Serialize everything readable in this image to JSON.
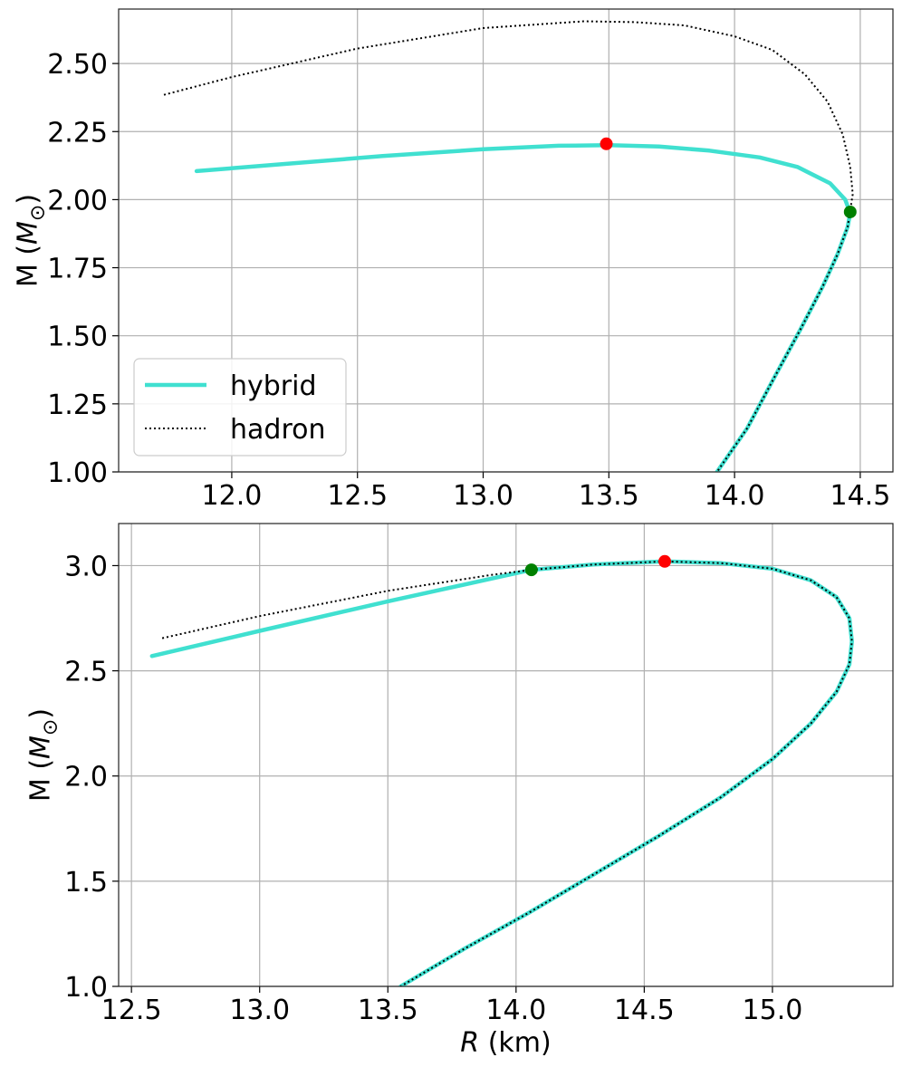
{
  "chart_data": [
    {
      "type": "line",
      "xlabel": "",
      "ylabel": "M (M⊙)",
      "xlim": [
        11.55,
        14.63
      ],
      "ylim": [
        1.0,
        2.7
      ],
      "xticks": [
        12.0,
        12.5,
        13.0,
        13.5,
        14.0,
        14.5
      ],
      "xtick_labels": [
        "12.0",
        "12.5",
        "13.0",
        "13.5",
        "14.0",
        "14.5"
      ],
      "yticks": [
        1.0,
        1.25,
        1.5,
        1.75,
        2.0,
        2.25,
        2.5
      ],
      "ytick_labels": [
        "1.00",
        "1.25",
        "1.50",
        "1.75",
        "2.00",
        "2.25",
        "2.50"
      ],
      "grid": true,
      "legend": "lower-left",
      "series": [
        {
          "name": "hybrid",
          "style": "solid",
          "color": "#40E0D0",
          "x": [
            11.86,
            12.2,
            12.6,
            13.0,
            13.3,
            13.5,
            13.7,
            13.9,
            14.1,
            14.25,
            14.38,
            14.44,
            14.46,
            14.45,
            14.41,
            14.35,
            14.26,
            14.16,
            14.05,
            13.93
          ],
          "y": [
            2.105,
            2.13,
            2.16,
            2.185,
            2.198,
            2.2,
            2.195,
            2.18,
            2.155,
            2.12,
            2.06,
            2.0,
            1.95,
            1.9,
            1.8,
            1.68,
            1.52,
            1.35,
            1.16,
            1.0
          ]
        },
        {
          "name": "hadron",
          "style": "dotted",
          "color": "#000000",
          "x": [
            11.73,
            12.0,
            12.5,
            13.0,
            13.4,
            13.6,
            13.8,
            14.0,
            14.15,
            14.28,
            14.37,
            14.43,
            14.46,
            14.47,
            14.46,
            14.45,
            14.41,
            14.35,
            14.26,
            14.16,
            14.05,
            13.93
          ],
          "y": [
            2.385,
            2.45,
            2.555,
            2.63,
            2.655,
            2.652,
            2.64,
            2.6,
            2.55,
            2.46,
            2.36,
            2.24,
            2.12,
            2.02,
            1.96,
            1.9,
            1.8,
            1.68,
            1.52,
            1.35,
            1.16,
            1.0
          ]
        }
      ],
      "markers": [
        {
          "x": 13.49,
          "y": 2.205,
          "color": "#FF0000"
        },
        {
          "x": 14.46,
          "y": 1.955,
          "color": "#008000"
        }
      ]
    },
    {
      "type": "line",
      "xlabel": "R (km)",
      "ylabel": "M (M⊙)",
      "xlim": [
        12.45,
        15.47
      ],
      "ylim": [
        1.0,
        3.2
      ],
      "xticks": [
        12.5,
        13.0,
        13.5,
        14.0,
        14.5,
        15.0
      ],
      "xtick_labels": [
        "12.5",
        "13.0",
        "13.5",
        "14.0",
        "14.5",
        "15.0"
      ],
      "yticks": [
        1.0,
        1.5,
        2.0,
        2.5,
        3.0
      ],
      "ytick_labels": [
        "1.0",
        "1.5",
        "2.0",
        "2.5",
        "3.0"
      ],
      "grid": true,
      "legend": "none",
      "series": [
        {
          "name": "hybrid",
          "style": "solid",
          "color": "#40E0D0",
          "x": [
            12.58,
            13.0,
            13.5,
            14.06,
            14.3,
            14.58,
            14.8,
            15.0,
            15.15,
            15.25,
            15.3,
            15.31,
            15.3,
            15.25,
            15.15,
            15.0,
            14.8,
            14.55,
            14.3,
            14.05,
            13.8,
            13.55
          ],
          "y": [
            2.57,
            2.69,
            2.83,
            2.98,
            3.005,
            3.02,
            3.012,
            2.985,
            2.93,
            2.85,
            2.75,
            2.64,
            2.53,
            2.4,
            2.25,
            2.08,
            1.9,
            1.71,
            1.53,
            1.35,
            1.18,
            1.0
          ]
        },
        {
          "name": "hadron",
          "style": "dotted",
          "color": "#000000",
          "x": [
            12.62,
            13.0,
            13.5,
            13.9,
            14.06,
            14.3,
            14.58,
            14.8,
            15.0,
            15.15,
            15.25,
            15.3,
            15.31,
            15.3,
            15.25,
            15.15,
            15.0,
            14.8,
            14.55,
            14.3,
            14.05,
            13.8,
            13.55
          ],
          "y": [
            2.655,
            2.76,
            2.88,
            2.955,
            2.98,
            3.005,
            3.02,
            3.012,
            2.985,
            2.93,
            2.85,
            2.75,
            2.64,
            2.53,
            2.4,
            2.25,
            2.08,
            1.9,
            1.71,
            1.53,
            1.35,
            1.18,
            1.0
          ]
        }
      ],
      "markers": [
        {
          "x": 14.06,
          "y": 2.98,
          "color": "#008000"
        },
        {
          "x": 14.58,
          "y": 3.02,
          "color": "#FF0000"
        }
      ]
    }
  ]
}
